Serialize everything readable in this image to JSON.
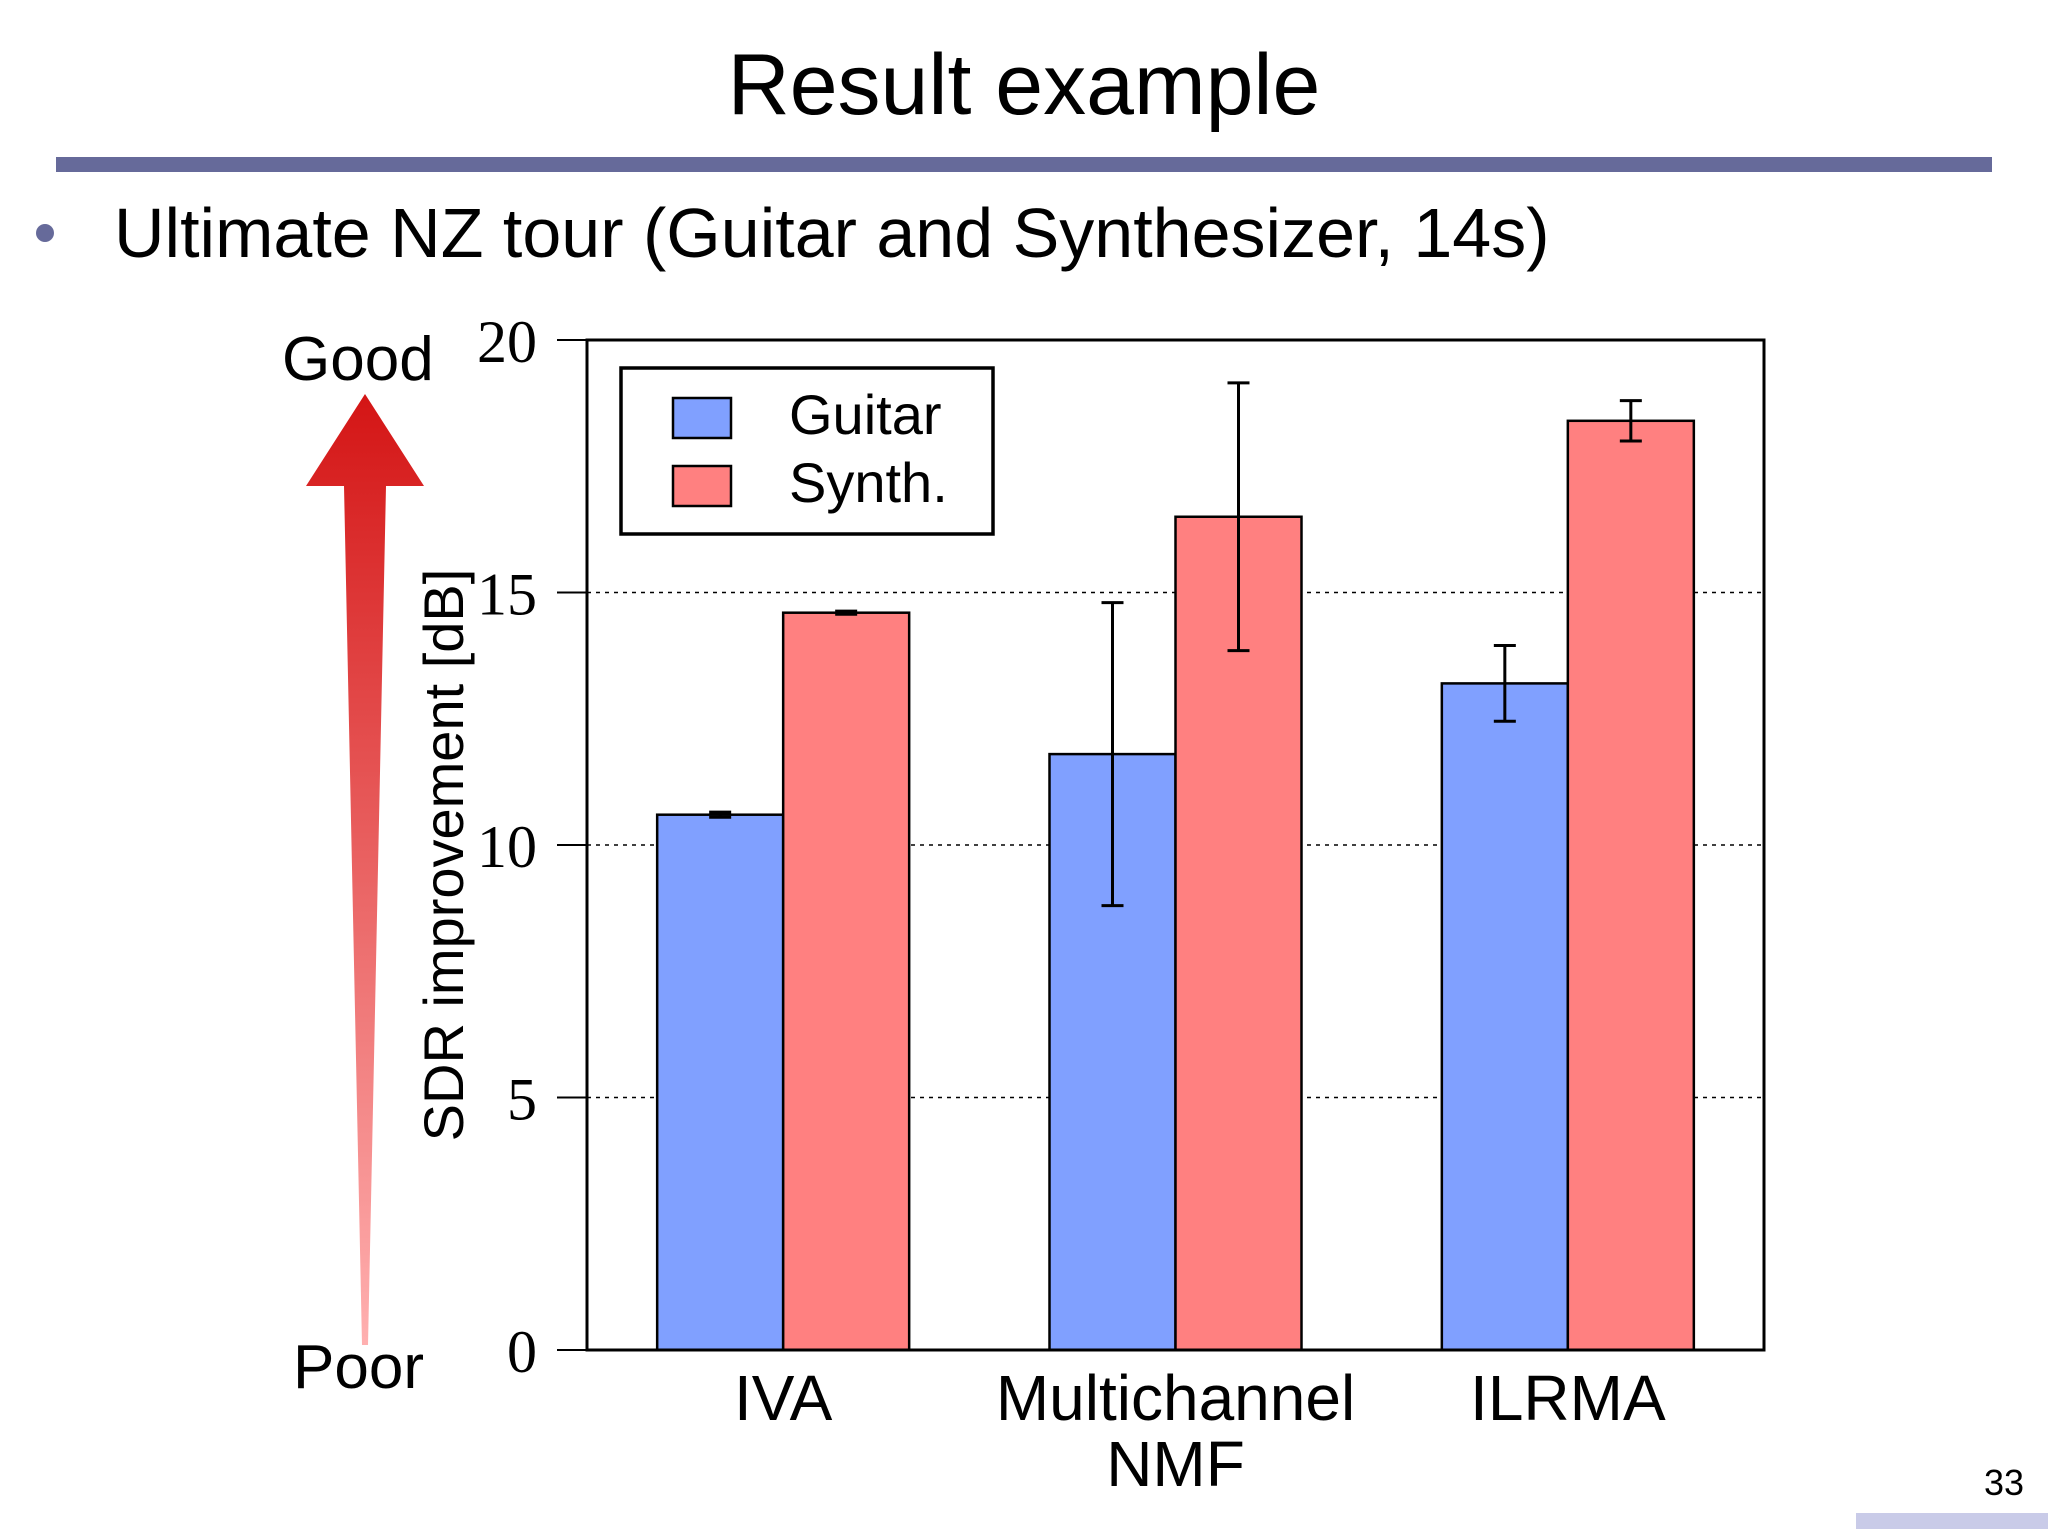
{
  "slide": {
    "title": "Result example",
    "bullet": "Ultimate NZ tour (Guitar and Synthesizer, 14s)",
    "page_number": "33"
  },
  "arrow": {
    "top_label": "Good",
    "bottom_label": "Poor",
    "color": "#dd1a1a"
  },
  "chart_data": {
    "type": "bar",
    "title": "",
    "categories": [
      "IVA",
      "Multichannel\nNMF",
      "ILRMA"
    ],
    "series": [
      {
        "name": "Guitar",
        "color": "#80a0ff",
        "values": [
          10.6,
          11.8,
          13.2
        ],
        "error": [
          0.05,
          3.0,
          0.75
        ]
      },
      {
        "name": "Synth.",
        "color": "#ff8080",
        "values": [
          14.6,
          16.5,
          18.4
        ],
        "error": [
          0.03,
          2.65,
          0.4
        ]
      }
    ],
    "ylabel": "SDR improvement [dB]",
    "xlabel": "",
    "ylim": [
      0,
      20
    ],
    "yticks": [
      0,
      5,
      10,
      15,
      20
    ],
    "grid": "horizontal dotted",
    "legend": "top-left"
  }
}
